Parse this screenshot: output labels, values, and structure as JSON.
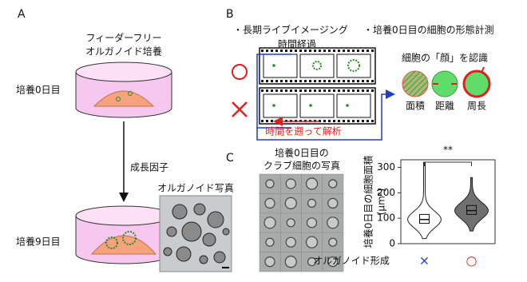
{
  "panel_a": {
    "letter": "A",
    "title_lines": [
      "フィーダーフリー",
      "オルガノイド培養"
    ],
    "day0": "培養0日目",
    "growth_factor": "成長因子",
    "day9": "培養9日目",
    "photo_label": "オルガノイド写真"
  },
  "panel_b": {
    "letter": "B",
    "imaging_title": "・長期ライブイメージング",
    "time_label": "時間経過",
    "backtrack_label": "時間を遡って解析",
    "morph_title": "・培養0日目の細胞の形態計測",
    "face_label": "細胞の「顔」を認識",
    "measures": [
      "面積",
      "距離",
      "周長"
    ]
  },
  "panel_c": {
    "letter": "C",
    "photo_title_lines": [
      "培養0日目の",
      "クラブ細胞の写真"
    ]
  },
  "chart_data": {
    "type": "violin",
    "ylabel_lines": [
      "培養0日目の細胞面積",
      "(μm²)"
    ],
    "xlabel": "オルガノイド形成",
    "categories": [
      "×",
      "○"
    ],
    "category_colors": [
      "#1f3fbf",
      "#e02020"
    ],
    "fills": [
      "#ffffff",
      "#707070"
    ],
    "median": [
      95,
      130
    ],
    "q1": [
      80,
      115
    ],
    "q3": [
      115,
      150
    ],
    "min": [
      20,
      50
    ],
    "max": [
      320,
      260
    ],
    "ylim": [
      0,
      330
    ],
    "yticks": [
      0,
      100,
      200,
      300
    ],
    "significance": "**"
  }
}
